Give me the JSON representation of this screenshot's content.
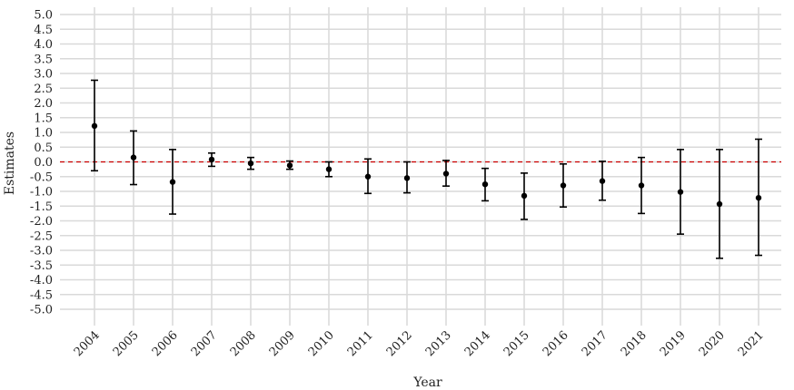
{
  "chart_data": {
    "type": "scatter",
    "xlabel": "Year",
    "ylabel": "Estimates",
    "ylim": [
      -5.0,
      5.0
    ],
    "y_ticks": [
      "5.0",
      "4.5",
      "4.0",
      "3.5",
      "3.0",
      "2.5",
      "2.0",
      "1.5",
      "1.0",
      "0.5",
      "0.0",
      "-0.5",
      "-1.0",
      "-1.5",
      "-2.0",
      "-2.5",
      "-3.0",
      "-3.5",
      "-4.0",
      "-4.5",
      "-5.0"
    ],
    "categories": [
      "2004",
      "2005",
      "2006",
      "2007",
      "2008",
      "2009",
      "2010",
      "2011",
      "2012",
      "2013",
      "2014",
      "2015",
      "2016",
      "2017",
      "2018",
      "2019",
      "2020",
      "2021"
    ],
    "estimates": [
      1.22,
      0.15,
      -0.68,
      0.08,
      -0.05,
      -0.12,
      -0.25,
      -0.5,
      -0.55,
      -0.4,
      -0.76,
      -1.15,
      -0.8,
      -0.65,
      -0.8,
      -1.02,
      -1.43,
      -1.22
    ],
    "ci_low": [
      -0.3,
      -0.77,
      -1.77,
      -0.15,
      -0.25,
      -0.25,
      -0.5,
      -1.07,
      -1.05,
      -0.82,
      -1.32,
      -1.95,
      -1.53,
      -1.3,
      -1.75,
      -2.45,
      -3.27,
      -3.17
    ],
    "ci_high": [
      2.77,
      1.05,
      0.42,
      0.3,
      0.15,
      0.03,
      0.0,
      0.1,
      0.0,
      0.05,
      -0.22,
      -0.38,
      -0.07,
      0.02,
      0.15,
      0.42,
      0.42,
      0.77
    ],
    "reference_line": 0.0,
    "grid": true,
    "colors": {
      "point": "#000000",
      "errorbar": "#000000",
      "grid": "#d9d9d9",
      "reference": "#cc0000"
    }
  }
}
